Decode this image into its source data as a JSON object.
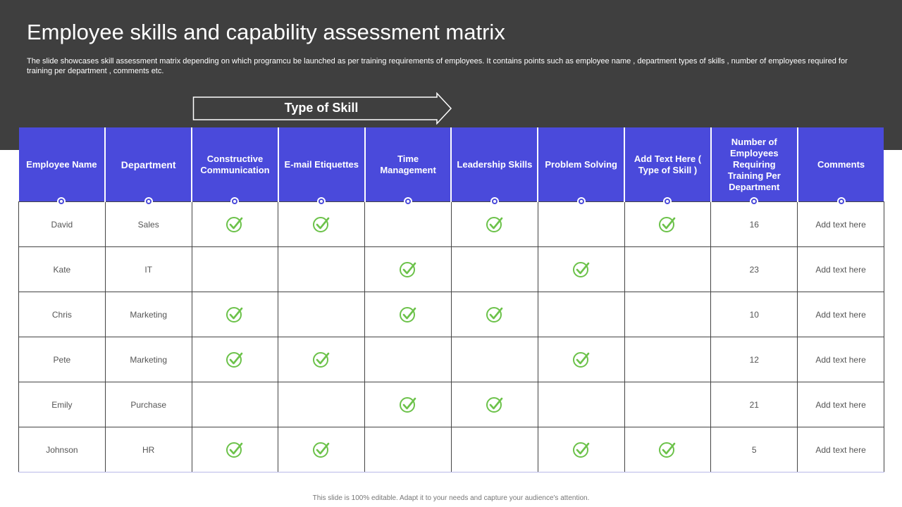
{
  "title": "Employee skills and capability assessment matrix",
  "subtitle": "The slide showcases skill assessment matrix depending on which programcu be launched as per training requirements of employees. It contains points such as employee name , department types of skills , number of employees required for training per department , comments etc.",
  "skill_banner": "Type of Skill",
  "colors": {
    "header": "#4a4adb",
    "band": "#3f3f3f",
    "check": "#6cc24a"
  },
  "columns": [
    "Employee Name",
    "Department",
    "Constructive Communication",
    "E-mail Etiquettes",
    "Time Management",
    "Leadership Skills",
    "Problem Solving",
    "Add Text Here ( Type of Skill )",
    "Number of Employees Requiring Training Per Department",
    "Comments"
  ],
  "rows": [
    {
      "name": "David",
      "department": "Sales",
      "skills": [
        true,
        true,
        false,
        true,
        false,
        true
      ],
      "count": "16",
      "comment": "Add text here"
    },
    {
      "name": "Kate",
      "department": "IT",
      "skills": [
        false,
        false,
        true,
        false,
        true,
        false
      ],
      "count": "23",
      "comment": "Add text here"
    },
    {
      "name": "Chris",
      "department": "Marketing",
      "skills": [
        true,
        false,
        true,
        true,
        false,
        false
      ],
      "count": "10",
      "comment": "Add text here"
    },
    {
      "name": "Pete",
      "department": "Marketing",
      "skills": [
        true,
        true,
        false,
        false,
        true,
        false
      ],
      "count": "12",
      "comment": "Add text here"
    },
    {
      "name": "Emily",
      "department": "Purchase",
      "skills": [
        false,
        false,
        true,
        true,
        false,
        false
      ],
      "count": "21",
      "comment": "Add text here"
    },
    {
      "name": "Johnson",
      "department": "HR",
      "skills": [
        true,
        true,
        false,
        false,
        true,
        true
      ],
      "count": "5",
      "comment": "Add text here"
    }
  ],
  "footer": "This slide is 100% editable. Adapt it to your needs and capture your audience's attention."
}
